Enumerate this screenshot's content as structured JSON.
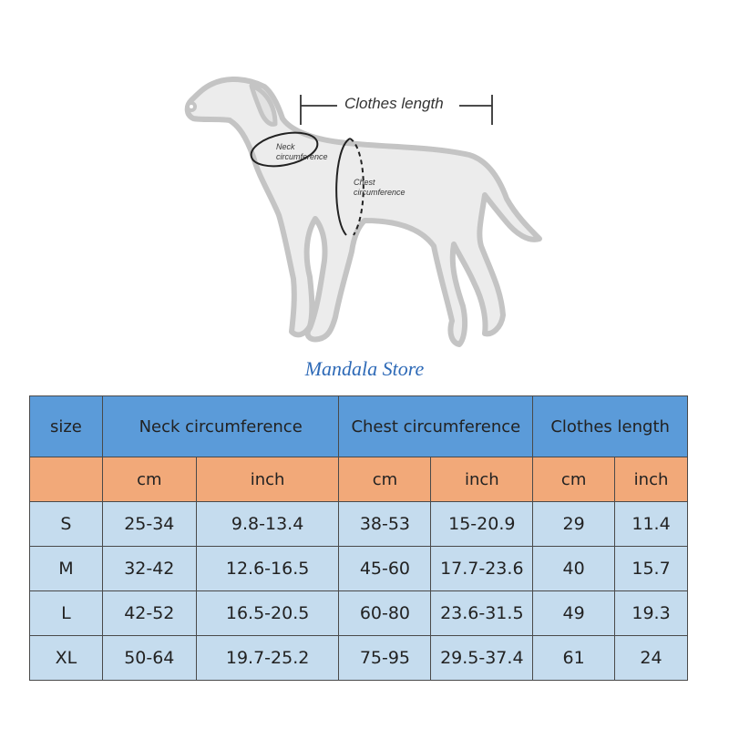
{
  "diagram": {
    "clothes_length_label": "Clothes length",
    "neck_label": [
      "Neck",
      "circumference"
    ],
    "chest_label": [
      "Chest",
      "circumference"
    ],
    "dog_fill": "#ececec",
    "dog_stroke": "#c4c4c4"
  },
  "store_name": "Mandala Store",
  "table": {
    "header_color": "#5b9bd9",
    "units_color": "#f2a979",
    "rows_color": "#c5dcee",
    "headers": {
      "size": "size",
      "neck": "Neck circumference",
      "chest": "Chest circumference",
      "length": "Clothes length"
    },
    "units": [
      "cm",
      "inch",
      "cm",
      "inch",
      "cm",
      "inch"
    ],
    "rows": [
      {
        "size": "S",
        "neck_cm": "25-34",
        "neck_in": "9.8-13.4",
        "chest_cm": "38-53",
        "chest_in": "15-20.9",
        "length_cm": "29",
        "length_in": "11.4"
      },
      {
        "size": "M",
        "neck_cm": "32-42",
        "neck_in": "12.6-16.5",
        "chest_cm": "45-60",
        "chest_in": "17.7-23.6",
        "length_cm": "40",
        "length_in": "15.7"
      },
      {
        "size": "L",
        "neck_cm": "42-52",
        "neck_in": "16.5-20.5",
        "chest_cm": "60-80",
        "chest_in": "23.6-31.5",
        "length_cm": "49",
        "length_in": "19.3"
      },
      {
        "size": "XL",
        "neck_cm": "50-64",
        "neck_in": "19.7-25.2",
        "chest_cm": "75-95",
        "chest_in": "29.5-37.4",
        "length_cm": "61",
        "length_in": "24"
      }
    ]
  }
}
